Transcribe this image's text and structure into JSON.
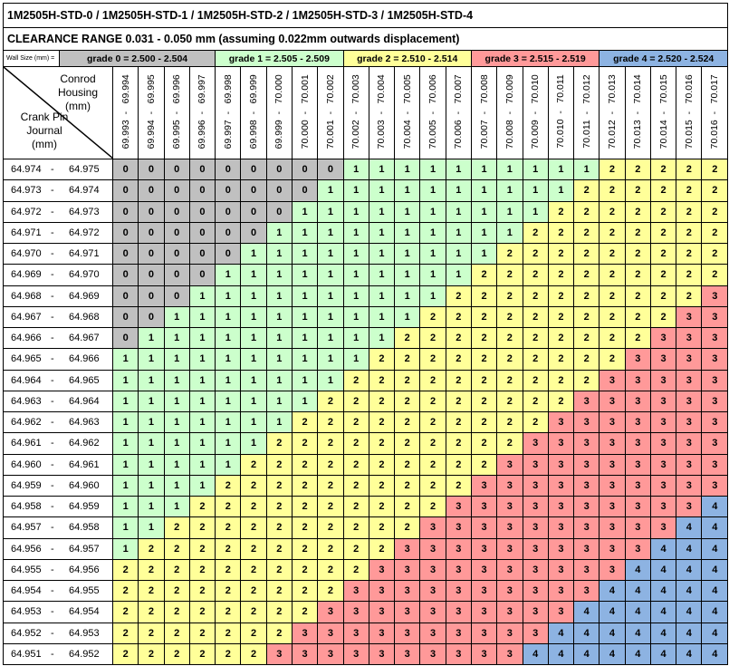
{
  "title": "1M2505H-STD-0 / 1M2505H-STD-1 / 1M2505H-STD-2 / 1M2505H-STD-3 / 1M2505H-STD-4",
  "clearance": "CLEARANCE RANGE 0.031 - 0.050 mm (assuming 0.022mm outwards displacement)",
  "wall_label": "Wall Size (mm) =",
  "grades": [
    {
      "label": "grade 0 = 2.500 - 2.504",
      "color": "#c0c0c0"
    },
    {
      "label": "grade 1 = 2.505 - 2.509",
      "color": "#ccffcc"
    },
    {
      "label": "grade 2 = 2.510 - 2.514",
      "color": "#ffff99"
    },
    {
      "label": "grade 3 = 2.515 - 2.519",
      "color": "#ff9999"
    },
    {
      "label": "grade 4 = 2.520 - 2.524",
      "color": "#8db3e2"
    }
  ],
  "corner": {
    "housing": "Conrod Housing (mm)",
    "pin": "Crank Pin Journal (mm)"
  },
  "columns": [
    {
      "lo": "69.993",
      "hi": "69.994"
    },
    {
      "lo": "69.994",
      "hi": "69.995"
    },
    {
      "lo": "69.995",
      "hi": "69.996"
    },
    {
      "lo": "69.996",
      "hi": "69.997"
    },
    {
      "lo": "69.997",
      "hi": "69.998"
    },
    {
      "lo": "69.998",
      "hi": "69.999"
    },
    {
      "lo": "69.999",
      "hi": "70.000"
    },
    {
      "lo": "70.000",
      "hi": "70.001"
    },
    {
      "lo": "70.001",
      "hi": "70.002"
    },
    {
      "lo": "70.002",
      "hi": "70.003"
    },
    {
      "lo": "70.003",
      "hi": "70.004"
    },
    {
      "lo": "70.004",
      "hi": "70.005"
    },
    {
      "lo": "70.005",
      "hi": "70.006"
    },
    {
      "lo": "70.006",
      "hi": "70.007"
    },
    {
      "lo": "70.007",
      "hi": "70.008"
    },
    {
      "lo": "70.008",
      "hi": "70.009"
    },
    {
      "lo": "70.009",
      "hi": "70.010"
    },
    {
      "lo": "70.010",
      "hi": "70.011"
    },
    {
      "lo": "70.011",
      "hi": "70.012"
    },
    {
      "lo": "70.012",
      "hi": "70.013"
    },
    {
      "lo": "70.013",
      "hi": "70.014"
    },
    {
      "lo": "70.014",
      "hi": "70.015"
    },
    {
      "lo": "70.015",
      "hi": "70.016"
    },
    {
      "lo": "70.016",
      "hi": "70.017"
    }
  ],
  "rows": [
    {
      "lo": "64.974",
      "hi": "64.975",
      "grades": "000000000111111111122222"
    },
    {
      "lo": "64.973",
      "hi": "64.974",
      "grades": "000000001111111111222222"
    },
    {
      "lo": "64.972",
      "hi": "64.973",
      "grades": "000000011111111112222222"
    },
    {
      "lo": "64.971",
      "hi": "64.972",
      "grades": "000000111111111122222222"
    },
    {
      "lo": "64.970",
      "hi": "64.971",
      "grades": "000001111111111222222222"
    },
    {
      "lo": "64.969",
      "hi": "64.970",
      "grades": "000011111111112222222222"
    },
    {
      "lo": "64.968",
      "hi": "64.969",
      "grades": "000111111111122222222223"
    },
    {
      "lo": "64.967",
      "hi": "64.968",
      "grades": "001111111111222222222233"
    },
    {
      "lo": "64.966",
      "hi": "64.967",
      "grades": "011111111112222222222333"
    },
    {
      "lo": "64.965",
      "hi": "64.966",
      "grades": "111111111122222222223333"
    },
    {
      "lo": "64.964",
      "hi": "64.965",
      "grades": "111111111222222222233333"
    },
    {
      "lo": "64.963",
      "hi": "64.964",
      "grades": "111111112222222222333333"
    },
    {
      "lo": "64.962",
      "hi": "64.963",
      "grades": "111111122222222223333333"
    },
    {
      "lo": "64.961",
      "hi": "64.962",
      "grades": "111111222222222233333333"
    },
    {
      "lo": "64.960",
      "hi": "64.961",
      "grades": "111112222222222333333333"
    },
    {
      "lo": "64.959",
      "hi": "64.960",
      "grades": "111122222222223333333333"
    },
    {
      "lo": "64.958",
      "hi": "64.959",
      "grades": "111222222222233333333334"
    },
    {
      "lo": "64.957",
      "hi": "64.958",
      "grades": "112222222222333333333344"
    },
    {
      "lo": "64.956",
      "hi": "64.957",
      "grades": "122222222223333333333444"
    },
    {
      "lo": "64.955",
      "hi": "64.956",
      "grades": "222222222233333333334444"
    },
    {
      "lo": "64.954",
      "hi": "64.955",
      "grades": "222222222333333333344444"
    },
    {
      "lo": "64.953",
      "hi": "64.954",
      "grades": "222222223333333333444444"
    },
    {
      "lo": "64.952",
      "hi": "64.953",
      "grades": "222222233333333334444444"
    },
    {
      "lo": "64.951",
      "hi": "64.952",
      "grades": "222222333333333344444444"
    }
  ]
}
